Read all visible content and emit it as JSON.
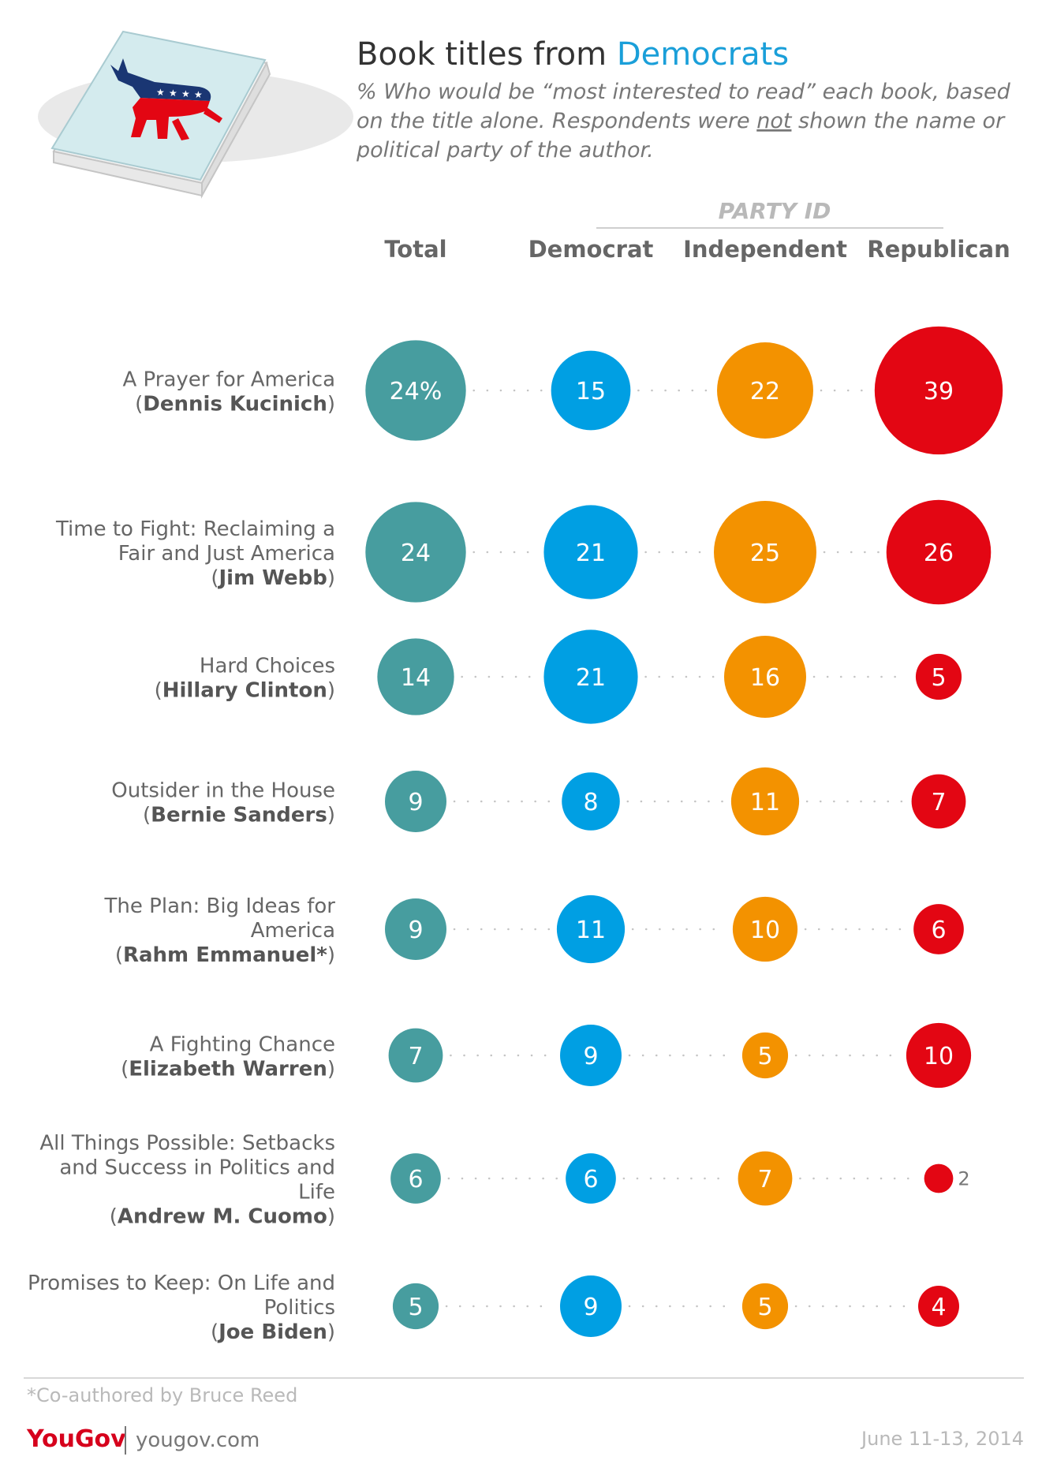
{
  "header": {
    "title_prefix": "Book titles from ",
    "title_highlight": "Democrats",
    "subtitle_lines": [
      "% Who would be “most interested to read” each book, based",
      "on the title alone. Respondents were not shown the name or",
      "political party of the author."
    ],
    "subtitle_underlined_word": "not"
  },
  "chart_data": {
    "type": "bubble-matrix",
    "group_header": "PARTY ID",
    "columns": [
      "Total",
      "Democrat",
      "Independent",
      "Republican"
    ],
    "first_value_suffix": "%",
    "rows": [
      {
        "title_lines": [
          "A Prayer for America"
        ],
        "author": "Dennis Kucinich",
        "values": [
          24,
          15,
          22,
          39
        ]
      },
      {
        "title_lines": [
          "Time to Fight: Reclaiming a",
          "Fair and Just America"
        ],
        "author": "Jim Webb",
        "values": [
          24,
          21,
          25,
          26
        ]
      },
      {
        "title_lines": [
          "Hard Choices"
        ],
        "author": "Hillary Clinton",
        "values": [
          14,
          21,
          16,
          5
        ]
      },
      {
        "title_lines": [
          "Outsider in the House"
        ],
        "author": "Bernie Sanders",
        "values": [
          9,
          8,
          11,
          7
        ]
      },
      {
        "title_lines": [
          "The Plan: Big Ideas for",
          "America"
        ],
        "author": "Rahm Emmanuel*",
        "values": [
          9,
          11,
          10,
          6
        ]
      },
      {
        "title_lines": [
          "A Fighting Chance"
        ],
        "author": "Elizabeth Warren",
        "values": [
          7,
          9,
          5,
          10
        ]
      },
      {
        "title_lines": [
          "All Things Possible: Setbacks",
          "and Success in Politics and",
          "Life"
        ],
        "author": "Andrew M. Cuomo",
        "values": [
          6,
          6,
          7,
          2
        ]
      },
      {
        "title_lines": [
          "Promises to Keep: On Life and",
          "Politics"
        ],
        "author": "Joe Biden",
        "values": [
          5,
          9,
          5,
          4
        ]
      }
    ]
  },
  "footer": {
    "footnote": "*Co-authored by Bruce Reed",
    "brand": "YouGov",
    "site": "yougov.com",
    "date": "June 11-13, 2014"
  },
  "colors": {
    "total": "#479d9f",
    "democrat": "#009fe3",
    "independent": "#f39200",
    "republican": "#e30613",
    "highlight": "#1a9fd9",
    "text": "#333333",
    "label": "#666666",
    "header": "#777777",
    "muted": "#b9b9b9",
    "brand": "#d6001c"
  }
}
